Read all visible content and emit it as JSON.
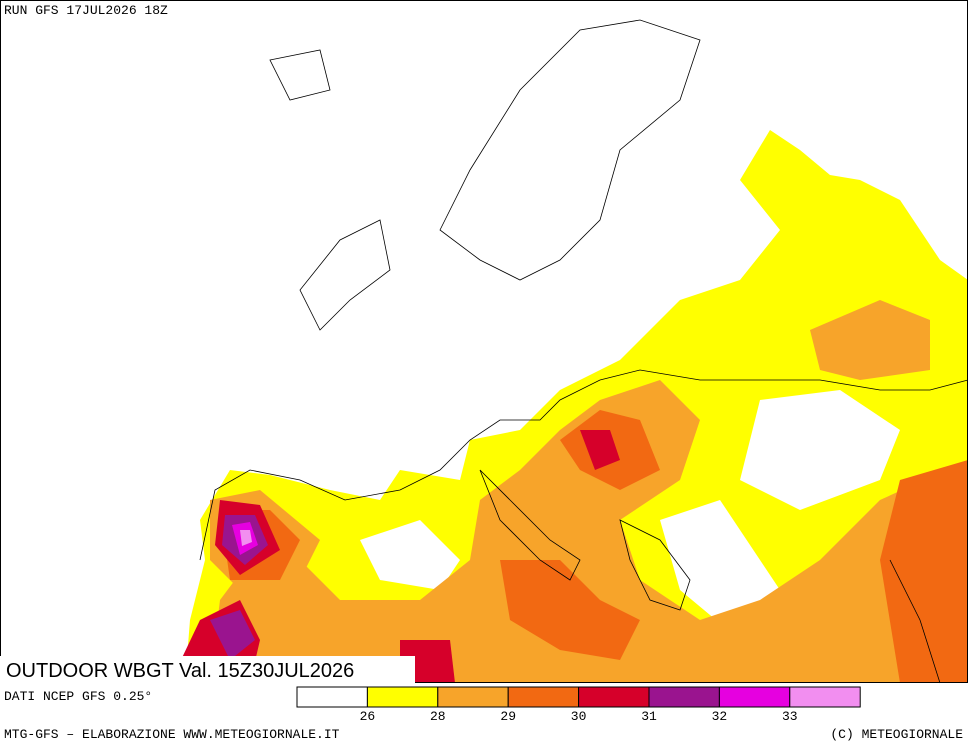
{
  "header": {
    "run": "RUN GFS 17JUL2026 18Z"
  },
  "map_label": {
    "title": "OUTDOOR WBGT Val. 15Z30JUL2026",
    "source": "DATI NCEP GFS 0.25°"
  },
  "legend": {
    "colors": [
      "#ffffff",
      "#ffff00",
      "#f7a42a",
      "#f26912",
      "#d6002a",
      "#9a148f",
      "#e600e0",
      "#f28ef0"
    ],
    "ticks": [
      26,
      28,
      29,
      30,
      31,
      32,
      33
    ]
  },
  "footer": {
    "left": "MTG-GFS – ELABORAZIONE WWW.METEOGIORNALE.IT",
    "right": "(C) METEOGIORNALE"
  }
}
